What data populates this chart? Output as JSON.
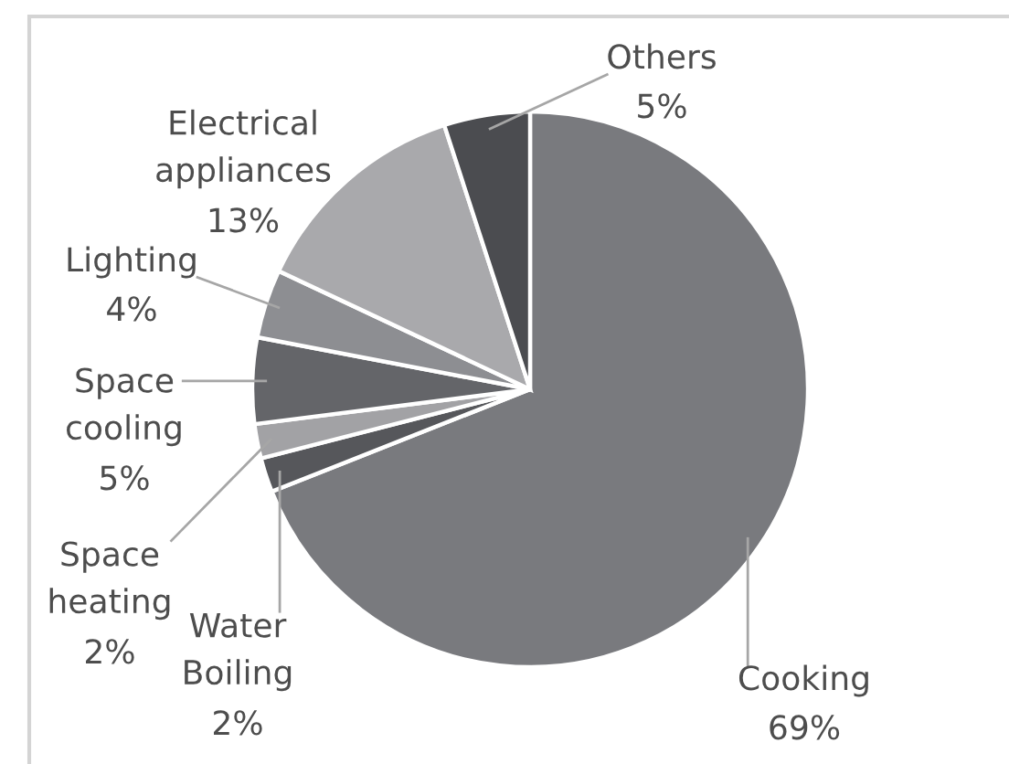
{
  "chart_data": {
    "type": "pie",
    "categories": [
      "Cooking",
      "Water Boiling",
      "Space heating",
      "Space cooling",
      "Lighting",
      "Electrical appliances",
      "Others"
    ],
    "values": [
      69,
      2,
      2,
      5,
      4,
      13,
      5
    ],
    "value_labels": [
      "69%",
      "2%",
      "2%",
      "5%",
      "4%",
      "13%",
      "5%"
    ],
    "colors": [
      "#797a7e",
      "#56575b",
      "#a2a2a5",
      "#646569",
      "#8d8e92",
      "#a9a9ac",
      "#4b4c50"
    ]
  }
}
